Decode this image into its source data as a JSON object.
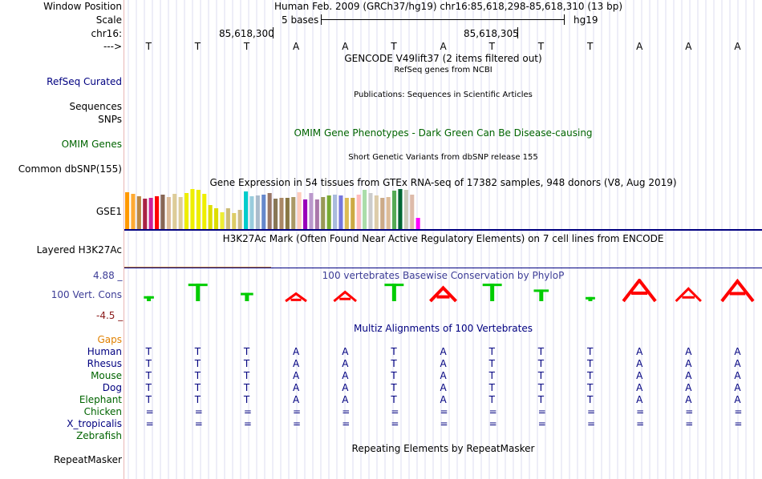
{
  "header": {
    "window_position_label": "Window Position",
    "window_position_value": "Human Feb. 2009 (GRCh37/hg19)   chr16:85,618,298-85,618,310 (13 bp)",
    "scale_label": "Scale",
    "scale_length": "5 bases",
    "scale_assembly": "hg19",
    "chrom_label": "chr16:",
    "coord_tick_1": "85,618,300",
    "coord_tick_2": "85,618,305",
    "strand_label": "--->"
  },
  "reference_bases": [
    "T",
    "T",
    "T",
    "A",
    "A",
    "T",
    "A",
    "T",
    "T",
    "T",
    "A",
    "A",
    "A"
  ],
  "tracks": {
    "gencode_title": "GENCODE V49lift37 (2 items filtered out)",
    "refseq_subtitle": "RefSeq genes from NCBI",
    "refseq_label": "RefSeq Curated",
    "publications_subtitle": "Publications: Sequences in Scientific Articles",
    "sequences_label": "Sequences",
    "snps_label": "SNPs",
    "omim_title": "OMIM Gene Phenotypes - Dark Green Can Be Disease-causing",
    "omim_label": "OMIM Genes",
    "dbsnp_subtitle": "Short Genetic Variants from dbSNP release 155",
    "dbsnp_label": "Common dbSNP(155)",
    "gtex_title": "Gene Expression in 54 tissues from GTEx RNA-seq of 17382 samples, 948 donors (V8, Aug 2019)",
    "gtex_label": "GSE1",
    "h3k27ac_title": "H3K27Ac Mark (Often Found Near Active Regulatory Elements) on 7 cell lines from ENCODE",
    "h3k27ac_label": "Layered H3K27Ac",
    "phylop_title": "100 vertebrates Basewise Conservation by PhyloP",
    "phylop_label": "100 Vert. Cons",
    "phylop_max": "4.88 _",
    "phylop_min": "-4.5 _",
    "multiz_title": "Multiz Alignments of 100 Vertebrates",
    "gaps_label": "Gaps",
    "repeatmasker_title": "Repeating Elements by RepeatMasker",
    "repeatmasker_label": "RepeatMasker"
  },
  "colors": {
    "track_label_blue": "#000080",
    "omim_green": "#006400",
    "phylop_blue": "#3c3c96",
    "phylop_minus": "#8b1a1a",
    "gaps_orange": "#e08000",
    "elephant_green": "#006400",
    "conserved_green": "#00cc00",
    "diverged_red": "#ff0000"
  },
  "species": [
    {
      "name": "Human",
      "color": "#000080",
      "row": [
        "T",
        "T",
        "T",
        "A",
        "A",
        "T",
        "A",
        "T",
        "T",
        "T",
        "A",
        "A",
        "A"
      ]
    },
    {
      "name": "Rhesus",
      "color": "#000080",
      "row": [
        "T",
        "T",
        "T",
        "A",
        "A",
        "T",
        "A",
        "T",
        "T",
        "T",
        "A",
        "A",
        "A"
      ]
    },
    {
      "name": "Mouse",
      "color": "#006400",
      "row": [
        "T",
        "T",
        "T",
        "A",
        "A",
        "T",
        "A",
        "T",
        "T",
        "T",
        "A",
        "A",
        "A"
      ]
    },
    {
      "name": "Dog",
      "color": "#000080",
      "row": [
        "T",
        "T",
        "T",
        "A",
        "A",
        "T",
        "A",
        "T",
        "T",
        "T",
        "A",
        "A",
        "A"
      ]
    },
    {
      "name": "Elephant",
      "color": "#006400",
      "row": [
        "T",
        "T",
        "T",
        "A",
        "A",
        "T",
        "A",
        "T",
        "T",
        "T",
        "A",
        "A",
        "A"
      ]
    },
    {
      "name": "Chicken",
      "color": "#006400",
      "row": [
        "=",
        "=",
        "=",
        "=",
        "=",
        "=",
        "=",
        "=",
        "=",
        "=",
        "=",
        "=",
        "="
      ]
    },
    {
      "name": "X_tropicalis",
      "color": "#000080",
      "row": [
        "=",
        "=",
        "=",
        "=",
        "=",
        "=",
        "=",
        "=",
        "=",
        "=",
        "=",
        "=",
        "="
      ]
    },
    {
      "name": "Zebrafish",
      "color": "#006400",
      "row": [
        "",
        "",
        "",
        "",
        "",
        "",
        "",
        "",
        "",
        "",
        "",
        "",
        ""
      ]
    }
  ],
  "phylop_scores": [
    0.12,
    0.42,
    0.2,
    0.18,
    0.22,
    0.42,
    0.32,
    0.42,
    0.28,
    0.1,
    0.5,
    0.3,
    0.48
  ],
  "phylop_kind": [
    "green",
    "green",
    "green",
    "red",
    "red",
    "green",
    "red",
    "green",
    "green",
    "green",
    "red",
    "red",
    "red"
  ],
  "gtex_tissue_colors": [
    "#ff9900",
    "#ffaa33",
    "#bb8844",
    "#aa2244",
    "#cc2299",
    "#ff0000",
    "#886655",
    "#ddbb99",
    "#ddcc99",
    "#ddcc99",
    "#eeee00",
    "#eeee00",
    "#eeee00",
    "#eeee00",
    "#dddd00",
    "#dddd00",
    "#eeee33",
    "#ccbb77",
    "#ddcc66",
    "#ccbb88",
    "#00cccc",
    "#99ccdd",
    "#aabbcc",
    "#6688cc",
    "#997766",
    "#887755",
    "#aa8866",
    "#887744",
    "#aa9966",
    "#ffccbb",
    "#9900bb",
    "#bb99cc",
    "#aa77aa",
    "#999955",
    "#77aa33",
    "#aabbdd",
    "#7777dd",
    "#ddbb55",
    "#ccaa44",
    "#ffbbbb",
    "#aaddaa",
    "#cccccc",
    "#ddccaa",
    "#ccaa88",
    "#ddbb99",
    "#55aa55",
    "#006633",
    "#ccccbb",
    "#ddbbaa",
    "#ff00ff"
  ],
  "gtex_expression": [
    0.92,
    0.88,
    0.82,
    0.76,
    0.78,
    0.82,
    0.86,
    0.8,
    0.88,
    0.8,
    0.9,
    1.0,
    0.98,
    0.88,
    0.6,
    0.52,
    0.42,
    0.52,
    0.4,
    0.48,
    0.94,
    0.82,
    0.84,
    0.86,
    0.9,
    0.76,
    0.78,
    0.78,
    0.8,
    0.92,
    0.74,
    0.9,
    0.74,
    0.8,
    0.84,
    0.86,
    0.84,
    0.78,
    0.78,
    0.86,
    0.98,
    0.9,
    0.84,
    0.78,
    0.8,
    0.96,
    1.0,
    0.98,
    0.86,
    0.28
  ]
}
